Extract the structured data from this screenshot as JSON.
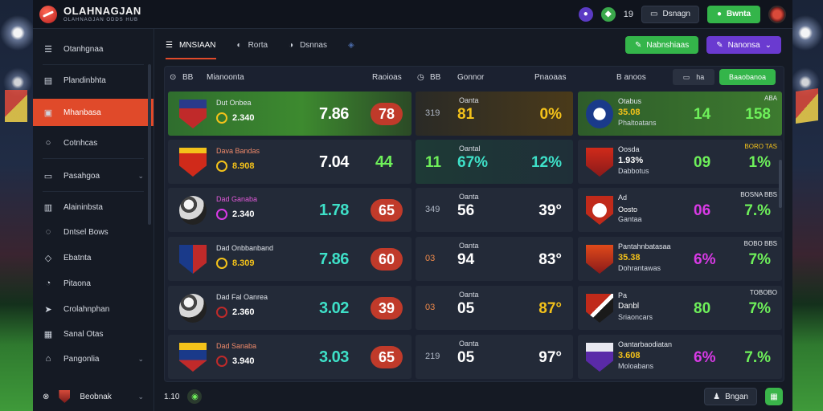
{
  "app": {
    "title": "OLAHNAGJAN",
    "subtitle": "OLAHNAGJAN ODDS HUB"
  },
  "topbar": {
    "count_badge": "19",
    "button_1": "Dsnagn",
    "button_2": "Bwnta"
  },
  "sidebar": {
    "items": [
      {
        "label": "Otanhgnaa",
        "icon": "menu-icon"
      },
      {
        "label": "Plandinbhta",
        "icon": "calendar-icon"
      },
      {
        "label": "Mhanbasa",
        "icon": "folder-icon"
      },
      {
        "label": "Cotnhcas",
        "icon": "search-icon"
      },
      {
        "label": "Pasahgoa",
        "icon": "monitor-icon"
      },
      {
        "label": "Alaininbsta",
        "icon": "grid-icon"
      },
      {
        "label": "Dntsel Bows",
        "icon": "globe-icon"
      },
      {
        "label": "Ebatnta",
        "icon": "tag-icon"
      },
      {
        "label": "Pitaona",
        "icon": "clock-icon"
      },
      {
        "label": "Crolahnphan",
        "icon": "send-icon"
      },
      {
        "label": "Sanal Otas",
        "icon": "chart-icon"
      },
      {
        "label": "Pangonlia",
        "icon": "lock-icon"
      }
    ],
    "footer_label": "Beobnak"
  },
  "tabs": [
    {
      "label": "MNSIAAN"
    },
    {
      "label": "Rorta"
    },
    {
      "label": "Dsnnas"
    }
  ],
  "tab_actions": {
    "green": "Nabnshiaas",
    "purple": "Nanonsa"
  },
  "panel_header": {
    "col1": "Mianoonta",
    "col1_prefix": "BB",
    "col2a": "Raoioas",
    "col2b": "Gonnor",
    "col2_prefix": "BB",
    "col3a": "Pnaoaas",
    "col3b": "B anoos",
    "toggle": "ha",
    "action": "Baaobanoa"
  },
  "rows": [
    {
      "team": "Dut Onbea",
      "small": "2.340",
      "main": "7.86",
      "pill": "78",
      "mid_label": "Oanta",
      "mid_pre": "319",
      "mid_big": "81",
      "mid_right": "0%",
      "r_t1": "Otabus",
      "r_t2": "35.08",
      "r_t3": "Phaltoatans",
      "r_v1": "14",
      "r_v2": "158",
      "r_tag": "ABA"
    },
    {
      "team": "Dava Bandas",
      "small": "8.908",
      "main": "7.04",
      "pill": "44",
      "mid_label": "Oantal",
      "mid_pre": "11",
      "mid_big": "67%",
      "mid_right": "12%",
      "r_t1": "Oosda",
      "r_t2": "1.93%",
      "r_t3": "Dabbotus",
      "r_v1": "09",
      "r_v2": "1%",
      "r_tag": "BORO TAS"
    },
    {
      "team": "Dad Ganaba",
      "small": "2.340",
      "main": "1.78",
      "pill": "65",
      "mid_label": "Oanta",
      "mid_pre": "349",
      "mid_big": "56",
      "mid_right": "39°",
      "r_t1": "Ad",
      "r_t2": "Oosto",
      "r_t3": "Gantaa",
      "r_v1": "06",
      "r_v2": "7.%",
      "r_tag": "BOSNA BBS"
    },
    {
      "team": "Dad Onbbanband",
      "small": "8.309",
      "main": "7.86",
      "pill": "60",
      "mid_label": "Oanta",
      "mid_pre": "03",
      "mid_big": "94",
      "mid_right": "83°",
      "r_t1": "Pantahnbatasaa",
      "r_t2": "35.38",
      "r_t3": "Dohrantawas",
      "r_v1": "6%",
      "r_v2": "7%",
      "r_tag": "BOBO BBS"
    },
    {
      "team": "Dad Fal Oanrea",
      "small": "2.360",
      "main": "3.02",
      "pill": "39",
      "mid_label": "Oanta",
      "mid_pre": "03",
      "mid_big": "05",
      "mid_right": "87°",
      "r_t1": "Pa",
      "r_t2": "Danbl",
      "r_t3": "Sriaoncars",
      "r_v1": "80",
      "r_v2": "7%",
      "r_tag": "TOBOBO"
    },
    {
      "team": "Dad Sanaba",
      "small": "3.940",
      "main": "3.03",
      "pill": "65",
      "mid_label": "Oanta",
      "mid_pre": "219",
      "mid_big": "05",
      "mid_right": "97°",
      "r_t1": "Oantarbaodiatan",
      "r_t2": "3.608",
      "r_t3": "Moloabans",
      "r_v1": "6%",
      "r_v2": "7.%",
      "r_tag": ""
    }
  ],
  "bottom": {
    "left_count": "1.10",
    "btn": "Bngan"
  },
  "colors": {
    "accent": "#e04a2a",
    "green": "#34b54a",
    "purple": "#6a3ad0",
    "teal": "#3ee0c8",
    "yellow": "#f4c21a",
    "magenta": "#d93ae6"
  }
}
